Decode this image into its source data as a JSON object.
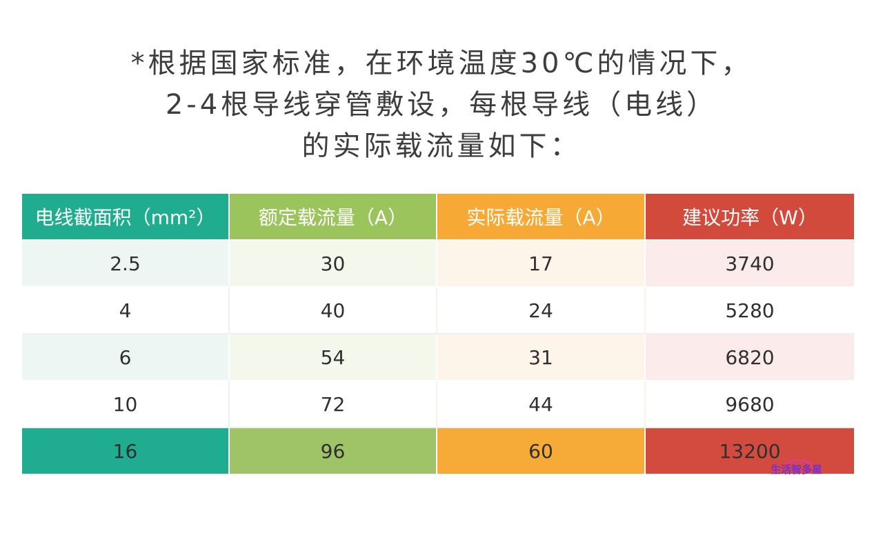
{
  "intro": {
    "lines": [
      "*根据国家标准，在环境温度30℃的情况下，",
      "2-4根导线穿管敷设，每根导线（电线）",
      "的实际载流量如下："
    ]
  },
  "table": {
    "headers": [
      "电线截面积（mm²）",
      "额定载流量（A）",
      "实际载流量（A）",
      "建议功率（W）"
    ],
    "rows": [
      [
        "2.5",
        "30",
        "17",
        "3740"
      ],
      [
        "4",
        "40",
        "24",
        "5280"
      ],
      [
        "6",
        "54",
        "31",
        "6820"
      ],
      [
        "10",
        "72",
        "44",
        "9680"
      ],
      [
        "16",
        "96",
        "60",
        "13200"
      ]
    ],
    "column_colors": [
      "#20ad8f",
      "#9bc45c",
      "#f6aa35",
      "#d24a3c"
    ]
  },
  "watermark": {
    "text": "生活智多星"
  }
}
